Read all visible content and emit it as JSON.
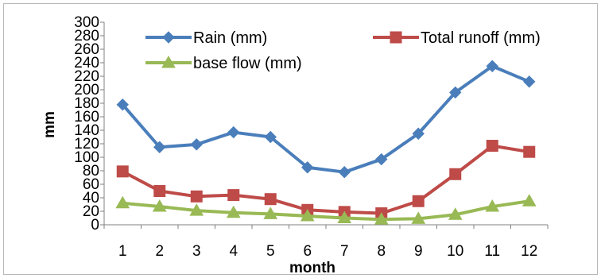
{
  "chart_data": {
    "type": "line",
    "title": "",
    "xlabel": "month",
    "ylabel": "mm",
    "categories": [
      "1",
      "2",
      "3",
      "4",
      "5",
      "6",
      "7",
      "8",
      "9",
      "10",
      "11",
      "12"
    ],
    "ylim": [
      0,
      300
    ],
    "yticks": [
      "0",
      "20",
      "40",
      "60",
      "80",
      "100",
      "120",
      "140",
      "160",
      "180",
      "200",
      "220",
      "240",
      "260",
      "280",
      "300"
    ],
    "grid": false,
    "legend_position": "top",
    "series": [
      {
        "name": "Rain (mm)",
        "color": "#4a7ebb",
        "marker": "diamond",
        "values": [
          178,
          115,
          119,
          137,
          130,
          85,
          78,
          97,
          135,
          196,
          235,
          212
        ]
      },
      {
        "name": "Total runoff (mm)",
        "color": "#be4b48",
        "marker": "square",
        "values": [
          79,
          50,
          42,
          44,
          38,
          22,
          19,
          17,
          35,
          75,
          117,
          108
        ]
      },
      {
        "name": "base flow (mm)",
        "color": "#98b954",
        "marker": "triangle",
        "values": [
          32,
          27,
          21,
          18,
          16,
          13,
          10,
          8,
          9,
          15,
          27,
          35
        ]
      }
    ]
  }
}
